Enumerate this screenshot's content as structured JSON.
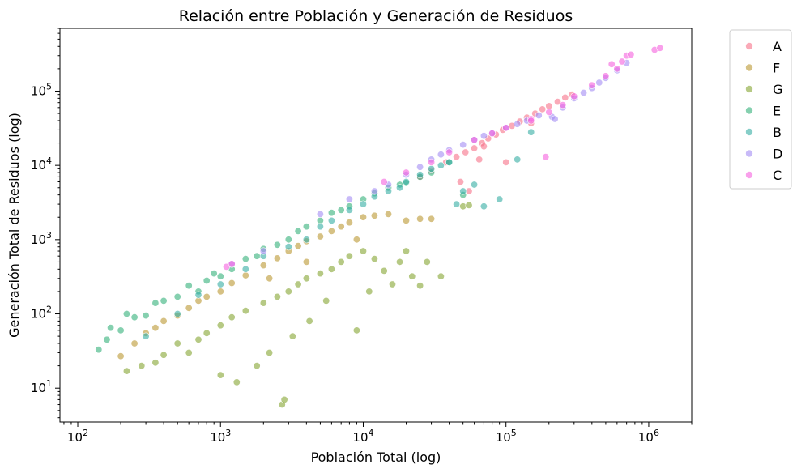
{
  "chart_data": {
    "type": "scatter",
    "title": "Relación entre Población y Generación de Residuos",
    "xlabel": "Población Total (log)",
    "ylabel": "Generación Total de Residuos (log)",
    "xscale": "log",
    "yscale": "log",
    "xlim": [
      75,
      2000000
    ],
    "ylim": [
      3.5,
      700000
    ],
    "x_ticks": [
      {
        "value": 100,
        "base": "10",
        "exp": "2"
      },
      {
        "value": 1000,
        "base": "10",
        "exp": "3"
      },
      {
        "value": 10000,
        "base": "10",
        "exp": "4"
      },
      {
        "value": 100000,
        "base": "10",
        "exp": "5"
      },
      {
        "value": 1000000,
        "base": "10",
        "exp": "6"
      }
    ],
    "y_ticks": [
      {
        "value": 10,
        "base": "10",
        "exp": "1"
      },
      {
        "value": 100,
        "base": "10",
        "exp": "2"
      },
      {
        "value": 1000,
        "base": "10",
        "exp": "3"
      },
      {
        "value": 10000,
        "base": "10",
        "exp": "4"
      },
      {
        "value": 100000,
        "base": "10",
        "exp": "5"
      }
    ],
    "grid": false,
    "legend_position": "outside top-right",
    "series": [
      {
        "name": "A",
        "color": "#f77189",
        "points": [
          [
            25000,
            7000
          ],
          [
            30000,
            8500
          ],
          [
            38000,
            11000
          ],
          [
            45000,
            13000
          ],
          [
            52000,
            15000
          ],
          [
            60000,
            17000
          ],
          [
            68000,
            20000
          ],
          [
            75000,
            23000
          ],
          [
            85000,
            26000
          ],
          [
            95000,
            30000
          ],
          [
            110000,
            34000
          ],
          [
            125000,
            39000
          ],
          [
            140000,
            44000
          ],
          [
            160000,
            50000
          ],
          [
            180000,
            57000
          ],
          [
            200000,
            63000
          ],
          [
            230000,
            72000
          ],
          [
            260000,
            82000
          ],
          [
            290000,
            90000
          ],
          [
            100000,
            11000
          ],
          [
            55000,
            4500
          ],
          [
            48000,
            6000
          ],
          [
            65000,
            12000
          ],
          [
            150000,
            37000
          ],
          [
            70000,
            18000
          ]
        ]
      },
      {
        "name": "F",
        "color": "#bb9832",
        "points": [
          [
            200,
            27
          ],
          [
            250,
            40
          ],
          [
            300,
            55
          ],
          [
            350,
            65
          ],
          [
            400,
            80
          ],
          [
            500,
            95
          ],
          [
            600,
            120
          ],
          [
            700,
            150
          ],
          [
            800,
            170
          ],
          [
            1000,
            200
          ],
          [
            1200,
            260
          ],
          [
            1500,
            330
          ],
          [
            2000,
            450
          ],
          [
            2500,
            560
          ],
          [
            3000,
            700
          ],
          [
            3500,
            820
          ],
          [
            4000,
            950
          ],
          [
            5000,
            1100
          ],
          [
            6000,
            1300
          ],
          [
            7000,
            1500
          ],
          [
            8000,
            1700
          ],
          [
            10000,
            2000
          ],
          [
            12000,
            2100
          ],
          [
            15000,
            2200
          ],
          [
            20000,
            1800
          ],
          [
            25000,
            1900
          ],
          [
            30000,
            1900
          ],
          [
            9000,
            1000
          ],
          [
            4000,
            500
          ],
          [
            2200,
            300
          ]
        ]
      },
      {
        "name": "G",
        "color": "#85a532",
        "points": [
          [
            220,
            17
          ],
          [
            280,
            20
          ],
          [
            350,
            22
          ],
          [
            400,
            28
          ],
          [
            500,
            40
          ],
          [
            600,
            30
          ],
          [
            700,
            45
          ],
          [
            800,
            55
          ],
          [
            1000,
            15
          ],
          [
            1000,
            70
          ],
          [
            1200,
            90
          ],
          [
            1300,
            12
          ],
          [
            1500,
            110
          ],
          [
            1800,
            20
          ],
          [
            2000,
            140
          ],
          [
            2200,
            30
          ],
          [
            2500,
            170
          ],
          [
            2700,
            6
          ],
          [
            2800,
            7
          ],
          [
            3000,
            200
          ],
          [
            3200,
            50
          ],
          [
            3500,
            250
          ],
          [
            4000,
            300
          ],
          [
            4200,
            80
          ],
          [
            5000,
            350
          ],
          [
            5500,
            150
          ],
          [
            6000,
            400
          ],
          [
            7000,
            500
          ],
          [
            8000,
            600
          ],
          [
            9000,
            60
          ],
          [
            10000,
            700
          ],
          [
            11000,
            200
          ],
          [
            12000,
            550
          ],
          [
            14000,
            380
          ],
          [
            16000,
            250
          ],
          [
            18000,
            500
          ],
          [
            20000,
            700
          ],
          [
            22000,
            320
          ],
          [
            25000,
            240
          ],
          [
            28000,
            500
          ],
          [
            35000,
            320
          ],
          [
            50000,
            2800
          ],
          [
            55000,
            2900
          ]
        ]
      },
      {
        "name": "E",
        "color": "#33b07a",
        "points": [
          [
            140,
            33
          ],
          [
            160,
            45
          ],
          [
            170,
            65
          ],
          [
            200,
            60
          ],
          [
            220,
            100
          ],
          [
            250,
            90
          ],
          [
            300,
            95
          ],
          [
            350,
            140
          ],
          [
            400,
            150
          ],
          [
            500,
            170
          ],
          [
            600,
            240
          ],
          [
            700,
            200
          ],
          [
            800,
            280
          ],
          [
            900,
            350
          ],
          [
            1000,
            320
          ],
          [
            1200,
            400
          ],
          [
            1500,
            550
          ],
          [
            1800,
            600
          ],
          [
            2000,
            750
          ],
          [
            2500,
            850
          ],
          [
            3000,
            1000
          ],
          [
            3500,
            1300
          ],
          [
            4000,
            1500
          ],
          [
            5000,
            1800
          ],
          [
            6000,
            2300
          ],
          [
            7000,
            2500
          ],
          [
            8000,
            2800
          ],
          [
            10000,
            3500
          ],
          [
            12000,
            4200
          ],
          [
            15000,
            5000
          ],
          [
            18000,
            5500
          ],
          [
            20000,
            5800
          ],
          [
            25000,
            7000
          ],
          [
            30000,
            8000
          ],
          [
            40000,
            11000
          ],
          [
            50000,
            4000
          ]
        ]
      },
      {
        "name": "B",
        "color": "#36ada4",
        "points": [
          [
            300,
            50
          ],
          [
            500,
            100
          ],
          [
            700,
            180
          ],
          [
            1000,
            250
          ],
          [
            1500,
            400
          ],
          [
            2000,
            600
          ],
          [
            3000,
            800
          ],
          [
            4000,
            1000
          ],
          [
            5000,
            1500
          ],
          [
            6000,
            1800
          ],
          [
            8000,
            2500
          ],
          [
            10000,
            3000
          ],
          [
            12000,
            3800
          ],
          [
            15000,
            4500
          ],
          [
            18000,
            5000
          ],
          [
            20000,
            6000
          ],
          [
            25000,
            7500
          ],
          [
            30000,
            9000
          ],
          [
            35000,
            10000
          ],
          [
            40000,
            11000
          ],
          [
            45000,
            3000
          ],
          [
            50000,
            4500
          ],
          [
            60000,
            5500
          ],
          [
            70000,
            2800
          ],
          [
            90000,
            3500
          ],
          [
            120000,
            12000
          ],
          [
            150000,
            28000
          ]
        ]
      },
      {
        "name": "D",
        "color": "#a48cf4",
        "points": [
          [
            1200,
            470
          ],
          [
            2000,
            700
          ],
          [
            5000,
            2200
          ],
          [
            8000,
            3500
          ],
          [
            12000,
            4500
          ],
          [
            15000,
            5500
          ],
          [
            20000,
            7500
          ],
          [
            25000,
            9500
          ],
          [
            30000,
            12000
          ],
          [
            35000,
            14000
          ],
          [
            40000,
            16000
          ],
          [
            50000,
            19000
          ],
          [
            60000,
            22000
          ],
          [
            70000,
            25000
          ],
          [
            80000,
            27000
          ],
          [
            100000,
            32000
          ],
          [
            120000,
            36000
          ],
          [
            140000,
            40000
          ],
          [
            170000,
            47000
          ],
          [
            210000,
            45000
          ],
          [
            250000,
            60000
          ],
          [
            300000,
            80000
          ],
          [
            350000,
            95000
          ],
          [
            400000,
            110000
          ],
          [
            450000,
            130000
          ],
          [
            500000,
            150000
          ],
          [
            600000,
            190000
          ],
          [
            700000,
            240000
          ],
          [
            220000,
            42000
          ]
        ]
      },
      {
        "name": "C",
        "color": "#f561dd",
        "points": [
          [
            1100,
            430
          ],
          [
            1200,
            470
          ],
          [
            14000,
            6000
          ],
          [
            20000,
            8000
          ],
          [
            30000,
            11000
          ],
          [
            40000,
            15000
          ],
          [
            60000,
            22000
          ],
          [
            80000,
            27000
          ],
          [
            100000,
            32000
          ],
          [
            150000,
            42000
          ],
          [
            190000,
            13000
          ],
          [
            200000,
            52000
          ],
          [
            250000,
            65000
          ],
          [
            300000,
            85000
          ],
          [
            400000,
            120000
          ],
          [
            500000,
            160000
          ],
          [
            550000,
            230000
          ],
          [
            600000,
            200000
          ],
          [
            650000,
            250000
          ],
          [
            700000,
            300000
          ],
          [
            750000,
            310000
          ],
          [
            1100000,
            360000
          ],
          [
            1200000,
            380000
          ],
          [
            150000,
            40000
          ]
        ]
      }
    ]
  }
}
